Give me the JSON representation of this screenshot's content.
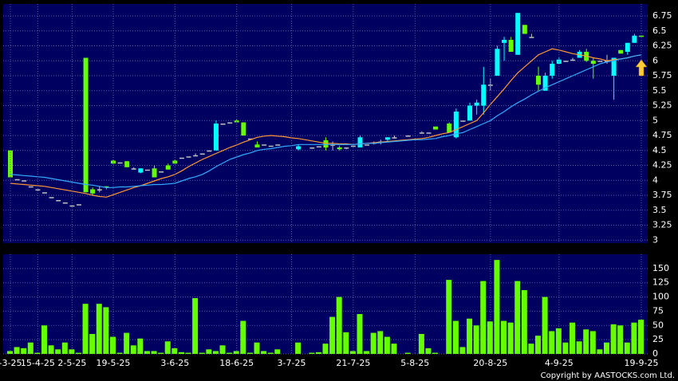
{
  "chart_data": [
    {
      "type": "candlestick",
      "ylim": [
        2.95,
        6.95
      ],
      "yticks": [
        3,
        3.25,
        3.5,
        3.75,
        4,
        4.25,
        4.5,
        4.75,
        5,
        5.25,
        5.5,
        5.75,
        6,
        6.25,
        6.5,
        6.75
      ],
      "grid": true,
      "up_color": "#00ffff",
      "down_color": "#66ff00",
      "flat_color": "#c0c0c0",
      "open": [
        4.5,
        4.02,
        4.0,
        3.9,
        3.85,
        3.8,
        3.72,
        3.67,
        3.63,
        3.58,
        3.6,
        6.05,
        3.85,
        3.85,
        3.9,
        4.33,
        4.3,
        4.32,
        4.2,
        4.13,
        4.18,
        4.2,
        4.15,
        4.25,
        4.33,
        4.38,
        4.4,
        4.42,
        4.45,
        4.5,
        4.5,
        4.95,
        4.97,
        5.0,
        4.97,
        4.7,
        4.6,
        4.6,
        4.58,
        4.6,
        null,
        null,
        4.52,
        null,
        4.55,
        4.57,
        4.67,
        4.6,
        4.55,
        4.55,
        4.58,
        4.55,
        4.6,
        4.63,
        4.65,
        4.68,
        4.72,
        null,
        4.75,
        null,
        4.8,
        4.8,
        4.9,
        null,
        4.95,
        4.72,
        5.0,
        5.0,
        5.25,
        5.25,
        5.6,
        5.75,
        6.3,
        6.35,
        6.1,
        6.6,
        6.4,
        5.75,
        5.5,
        5.75,
        5.95,
        6.0,
        6.02,
        6.05,
        6.15,
        6.0,
        6.0,
        6.0,
        5.75,
        6.18,
        6.15,
        6.3,
        6.42
      ],
      "high": [
        4.5,
        4.02,
        4.0,
        3.9,
        3.85,
        3.8,
        3.72,
        3.67,
        3.63,
        3.58,
        3.6,
        6.05,
        3.88,
        3.9,
        3.9,
        4.35,
        4.3,
        4.32,
        4.22,
        4.2,
        4.18,
        4.25,
        4.15,
        4.28,
        4.35,
        4.38,
        4.4,
        4.45,
        4.45,
        4.5,
        5.0,
        4.95,
        4.97,
        5.02,
        4.97,
        4.7,
        4.65,
        4.6,
        4.58,
        4.6,
        null,
        null,
        4.6,
        null,
        4.55,
        4.57,
        4.72,
        4.65,
        4.58,
        4.55,
        4.58,
        4.75,
        4.6,
        4.65,
        4.68,
        4.72,
        4.75,
        null,
        4.75,
        null,
        4.82,
        4.8,
        4.9,
        null,
        4.97,
        5.2,
        5.0,
        5.3,
        5.35,
        5.9,
        5.7,
        6.25,
        6.4,
        6.4,
        6.8,
        6.6,
        6.45,
        5.9,
        5.8,
        6.0,
        6.05,
        6.0,
        6.05,
        6.18,
        6.2,
        6.05,
        6.0,
        6.1,
        6.05,
        6.18,
        6.3,
        6.45,
        6.42
      ],
      "low": [
        4.05,
        4.02,
        4.0,
        3.9,
        3.85,
        3.8,
        3.72,
        3.67,
        3.63,
        3.58,
        3.6,
        3.8,
        3.75,
        3.8,
        3.85,
        4.28,
        4.3,
        4.22,
        4.18,
        4.12,
        4.18,
        4.05,
        4.15,
        4.18,
        4.28,
        4.38,
        4.4,
        4.4,
        4.45,
        4.5,
        4.5,
        4.95,
        4.97,
        4.97,
        4.75,
        4.7,
        4.55,
        4.6,
        4.58,
        4.6,
        null,
        null,
        4.5,
        null,
        4.55,
        4.57,
        4.5,
        4.5,
        4.5,
        4.52,
        4.58,
        4.55,
        4.6,
        4.6,
        4.6,
        4.65,
        4.7,
        null,
        4.75,
        null,
        4.78,
        4.8,
        4.85,
        null,
        4.8,
        4.7,
        5.0,
        5.0,
        5.1,
        5.1,
        5.5,
        5.75,
        6.0,
        6.15,
        6.1,
        6.45,
        6.4,
        5.5,
        5.5,
        5.7,
        5.95,
        6.0,
        6.0,
        6.05,
        5.98,
        5.7,
        6.0,
        5.95,
        5.35,
        6.12,
        6.1,
        6.3,
        6.4
      ],
      "close": [
        4.05,
        4.02,
        4.0,
        3.9,
        3.85,
        3.8,
        3.72,
        3.67,
        3.63,
        3.58,
        3.6,
        3.8,
        3.78,
        3.85,
        3.88,
        4.28,
        4.3,
        4.22,
        4.2,
        4.2,
        4.18,
        4.05,
        4.15,
        4.18,
        4.28,
        4.38,
        4.4,
        4.42,
        4.45,
        4.5,
        4.95,
        4.95,
        4.97,
        4.97,
        4.75,
        4.7,
        4.55,
        4.6,
        4.58,
        4.6,
        null,
        null,
        4.57,
        null,
        4.55,
        4.57,
        4.55,
        4.6,
        4.52,
        4.55,
        4.58,
        4.72,
        4.6,
        4.63,
        4.65,
        4.72,
        4.72,
        null,
        4.75,
        null,
        4.8,
        4.8,
        4.85,
        null,
        4.8,
        5.15,
        5.0,
        5.25,
        5.3,
        5.6,
        5.6,
        6.2,
        6.35,
        6.15,
        6.8,
        6.45,
        6.4,
        5.6,
        5.75,
        5.95,
        6.02,
        6.0,
        6.02,
        6.15,
        6.0,
        5.95,
        6.0,
        6.0,
        6.05,
        6.12,
        6.3,
        6.42,
        6.4
      ],
      "lines": [
        {
          "color": "#ff9933",
          "values": [
            3.95,
            3.94,
            3.93,
            3.92,
            3.91,
            3.9,
            3.88,
            3.86,
            3.84,
            3.82,
            3.8,
            3.78,
            3.75,
            3.73,
            3.72,
            3.76,
            3.8,
            3.84,
            3.88,
            3.91,
            3.95,
            3.99,
            4.03,
            4.06,
            4.1,
            4.16,
            4.23,
            4.29,
            4.35,
            4.4,
            4.45,
            4.5,
            4.55,
            4.59,
            4.64,
            4.68,
            4.72,
            4.74,
            4.75,
            4.74,
            4.73,
            4.71,
            4.7,
            4.68,
            4.66,
            4.64,
            4.62,
            4.62,
            4.61,
            4.61,
            4.6,
            4.61,
            4.62,
            4.63,
            4.64,
            4.65,
            4.66,
            4.67,
            4.68,
            4.69,
            4.7,
            4.72,
            4.75,
            4.78,
            4.8,
            4.85,
            4.9,
            4.95,
            5.0,
            5.13,
            5.27,
            5.4,
            5.53,
            5.67,
            5.8,
            5.9,
            6.0,
            6.1,
            6.15,
            6.2,
            6.18,
            6.15,
            6.12,
            6.1,
            6.08,
            6.05,
            6.03,
            6.0,
            6.02,
            6.03,
            6.05,
            6.08,
            6.1
          ]
        },
        {
          "color": "#33aaff",
          "values": [
            4.1,
            4.09,
            4.08,
            4.07,
            4.06,
            4.05,
            4.03,
            4.01,
            3.99,
            3.97,
            3.95,
            3.93,
            3.92,
            3.9,
            3.88,
            3.88,
            3.89,
            3.89,
            3.9,
            3.91,
            3.92,
            3.93,
            3.93,
            3.94,
            3.95,
            3.99,
            4.03,
            4.06,
            4.1,
            4.16,
            4.23,
            4.29,
            4.35,
            4.39,
            4.43,
            4.46,
            4.5,
            4.52,
            4.53,
            4.55,
            4.57,
            4.58,
            4.6,
            4.6,
            4.6,
            4.6,
            4.6,
            4.6,
            4.6,
            4.6,
            4.6,
            4.61,
            4.62,
            4.62,
            4.63,
            4.64,
            4.65,
            4.66,
            4.67,
            4.68,
            4.68,
            4.69,
            4.7,
            4.73,
            4.75,
            4.78,
            4.8,
            4.85,
            4.9,
            4.95,
            5.0,
            5.08,
            5.15,
            5.23,
            5.3,
            5.36,
            5.43,
            5.49,
            5.55,
            5.6,
            5.65,
            5.7,
            5.75,
            5.8,
            5.85,
            5.9,
            5.95,
            5.98,
            6.0,
            6.03,
            6.05,
            6.08,
            6.1
          ]
        }
      ]
    },
    {
      "type": "bar",
      "ylim": [
        0,
        175
      ],
      "yticks": [
        0,
        25,
        50,
        75,
        100,
        125,
        150
      ],
      "grid": true,
      "color": "#66ff00",
      "categories": [
        "-3-25",
        null,
        null,
        null,
        "15-4-25",
        null,
        null,
        null,
        null,
        "2-5-25",
        null,
        null,
        null,
        null,
        null,
        "19-5-25",
        null,
        null,
        null,
        null,
        null,
        null,
        null,
        null,
        "3-6-25",
        null,
        null,
        null,
        null,
        null,
        null,
        null,
        null,
        "18-6-25",
        null,
        null,
        null,
        null,
        null,
        null,
        null,
        "3-7-25",
        null,
        null,
        null,
        null,
        null,
        null,
        null,
        null,
        "21-7-25",
        null,
        null,
        null,
        null,
        null,
        null,
        null,
        null,
        "5-8-25",
        null,
        null,
        null,
        null,
        null,
        null,
        null,
        null,
        null,
        null,
        "20-8-25",
        null,
        null,
        null,
        null,
        null,
        null,
        null,
        null,
        null,
        "4-9-25",
        null,
        null,
        null,
        null,
        null,
        null,
        null,
        null,
        null,
        null,
        null,
        "19-9-25"
      ],
      "values": [
        5,
        12,
        10,
        20,
        2,
        50,
        15,
        8,
        20,
        8,
        2,
        88,
        35,
        88,
        82,
        30,
        2,
        37,
        15,
        27,
        5,
        5,
        2,
        22,
        10,
        3,
        2,
        98,
        2,
        8,
        5,
        15,
        2,
        5,
        58,
        2,
        20,
        5,
        2,
        8,
        0,
        0,
        20,
        0,
        2,
        3,
        18,
        65,
        100,
        38,
        5,
        70,
        5,
        37,
        40,
        30,
        18,
        0,
        2,
        0,
        35,
        10,
        2,
        0,
        130,
        58,
        12,
        62,
        50,
        128,
        57,
        165,
        58,
        55,
        128,
        112,
        18,
        32,
        100,
        40,
        45,
        20,
        55,
        22,
        43,
        40,
        8,
        20,
        52,
        50,
        20,
        55,
        60
      ]
    }
  ],
  "copyright": "Copyright by AASTOCKS.com Ltd."
}
